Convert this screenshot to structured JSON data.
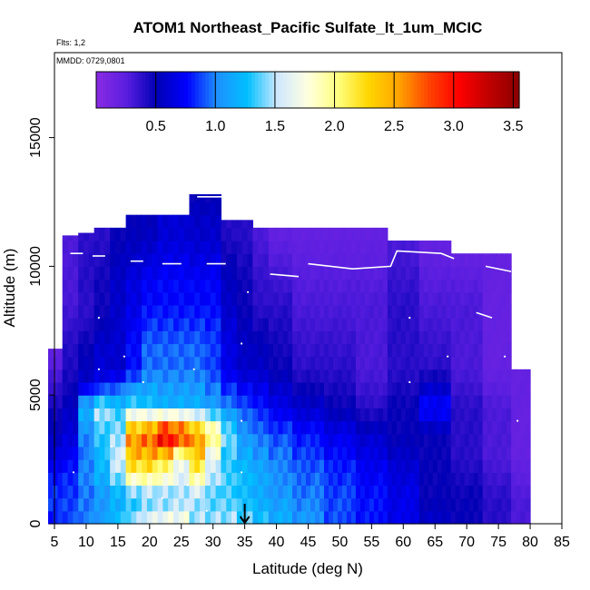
{
  "chart_data": {
    "type": "heatmap",
    "title": "ATOM1 Northeast_Pacific Sulfate_lt_1um_MCIC",
    "flights_label": "Flts: 1,2",
    "dates_label": "MMDD: 0729,0801",
    "xlabel": "Latitude (deg N)",
    "ylabel": "Altitude (m)",
    "xlim": [
      5,
      85
    ],
    "ylim": [
      0,
      18300
    ],
    "x_ticks": [
      5,
      10,
      15,
      20,
      25,
      30,
      35,
      40,
      45,
      50,
      55,
      60,
      65,
      70,
      75,
      80,
      85
    ],
    "x_tick_labels": [
      "5",
      "10",
      "15",
      "20",
      "25",
      "30",
      "35",
      "40",
      "45",
      "50",
      "55",
      "60",
      "65",
      "70",
      "75",
      "80",
      "85"
    ],
    "y_ticks": [
      0,
      5000,
      10000,
      15000
    ],
    "y_tick_labels": [
      "0",
      "5000",
      "10000",
      "15000"
    ],
    "colorbar": {
      "range": [
        0,
        3.55
      ],
      "ticks": [
        0.5,
        1.0,
        1.5,
        2.0,
        2.5,
        3.0,
        3.5
      ],
      "tick_labels": [
        "0.5",
        "1.0",
        "1.5",
        "2.0",
        "2.5",
        "3.0",
        "3.5"
      ],
      "colors": [
        "#8a2be2",
        "#5a1ee0",
        "#0000b4",
        "#0000ff",
        "#1e90ff",
        "#00bfff",
        "#cfe8ff",
        "#ffffe0",
        "#ffff80",
        "#ffd700",
        "#ffa500",
        "#ff4500",
        "#ff0000",
        "#c00000",
        "#8b0000"
      ]
    },
    "marker": {
      "label": "arrow",
      "x": 35
    },
    "columns": [
      {
        "lat": 5,
        "top": 6800,
        "profile": [
          [
            0,
            0.8
          ],
          [
            1000,
            0.9
          ],
          [
            3000,
            0.6
          ],
          [
            5000,
            0.4
          ],
          [
            6800,
            0.2
          ]
        ]
      },
      {
        "lat": 7.5,
        "top": 11200,
        "profile": [
          [
            0,
            0.9
          ],
          [
            1000,
            0.9
          ],
          [
            3000,
            0.7
          ],
          [
            5000,
            0.5
          ],
          [
            7000,
            0.4
          ],
          [
            9000,
            0.3
          ],
          [
            11200,
            0.3
          ]
        ]
      },
      {
        "lat": 10,
        "top": 11300,
        "profile": [
          [
            0,
            1.0
          ],
          [
            1000,
            1.0
          ],
          [
            3000,
            1.0
          ],
          [
            4500,
            1.2
          ],
          [
            5500,
            0.6
          ],
          [
            8000,
            0.4
          ],
          [
            11300,
            0.4
          ]
        ]
      },
      {
        "lat": 12.5,
        "top": 11500,
        "profile": [
          [
            0,
            1.1
          ],
          [
            1000,
            1.1
          ],
          [
            3000,
            1.3
          ],
          [
            4500,
            1.5
          ],
          [
            5500,
            0.7
          ],
          [
            8000,
            0.5
          ],
          [
            11500,
            0.4
          ]
        ]
      },
      {
        "lat": 15,
        "top": 11500,
        "profile": [
          [
            0,
            1.3
          ],
          [
            1000,
            1.2
          ],
          [
            2500,
            1.6
          ],
          [
            3500,
            1.5
          ],
          [
            4500,
            1.3
          ],
          [
            6000,
            0.6
          ],
          [
            8500,
            0.6
          ],
          [
            11500,
            0.5
          ]
        ]
      },
      {
        "lat": 17.5,
        "top": 12000,
        "profile": [
          [
            0,
            1.5
          ],
          [
            1000,
            1.3
          ],
          [
            2500,
            2.4
          ],
          [
            3500,
            2.7
          ],
          [
            4500,
            1.4
          ],
          [
            6000,
            0.8
          ],
          [
            8500,
            0.7
          ],
          [
            12000,
            0.5
          ]
        ]
      },
      {
        "lat": 20,
        "top": 12000,
        "profile": [
          [
            0,
            1.7
          ],
          [
            1000,
            1.4
          ],
          [
            2500,
            2.4
          ],
          [
            3500,
            2.9
          ],
          [
            4500,
            1.3
          ],
          [
            6000,
            1.0
          ],
          [
            8500,
            0.8
          ],
          [
            12000,
            0.5
          ]
        ]
      },
      {
        "lat": 22.5,
        "top": 12000,
        "profile": [
          [
            0,
            1.8
          ],
          [
            1000,
            1.4
          ],
          [
            2500,
            2.2
          ],
          [
            3500,
            3.4
          ],
          [
            4500,
            1.2
          ],
          [
            6000,
            1.0
          ],
          [
            8500,
            0.8
          ],
          [
            12000,
            0.6
          ]
        ]
      },
      {
        "lat": 25,
        "top": 12000,
        "profile": [
          [
            0,
            1.8
          ],
          [
            1000,
            1.5
          ],
          [
            2500,
            1.7
          ],
          [
            3500,
            3.2
          ],
          [
            4500,
            1.2
          ],
          [
            6000,
            1.0
          ],
          [
            8500,
            0.8
          ],
          [
            12000,
            0.6
          ]
        ]
      },
      {
        "lat": 27.5,
        "top": 12800,
        "profile": [
          [
            0,
            1.5
          ],
          [
            1000,
            1.5
          ],
          [
            2500,
            2.3
          ],
          [
            3500,
            2.7
          ],
          [
            4500,
            1.2
          ],
          [
            6000,
            1.0
          ],
          [
            8500,
            0.8
          ],
          [
            12800,
            0.5
          ]
        ]
      },
      {
        "lat": 30,
        "top": 12800,
        "profile": [
          [
            0,
            1.5
          ],
          [
            1000,
            1.4
          ],
          [
            2500,
            1.6
          ],
          [
            3500,
            2.2
          ],
          [
            4500,
            1.1
          ],
          [
            6000,
            0.9
          ],
          [
            8500,
            0.8
          ],
          [
            12800,
            0.5
          ]
        ]
      },
      {
        "lat": 32.5,
        "top": 11800,
        "profile": [
          [
            0,
            1.5
          ],
          [
            1000,
            1.4
          ],
          [
            2500,
            1.3
          ],
          [
            3500,
            1.5
          ],
          [
            4500,
            1.0
          ],
          [
            6000,
            0.7
          ],
          [
            8500,
            0.6
          ],
          [
            11800,
            0.4
          ]
        ]
      },
      {
        "lat": 35,
        "top": 11800,
        "profile": [
          [
            0,
            1.4
          ],
          [
            1000,
            1.3
          ],
          [
            2500,
            1.2
          ],
          [
            3500,
            1.1
          ],
          [
            4500,
            0.9
          ],
          [
            6000,
            0.6
          ],
          [
            8500,
            0.5
          ],
          [
            11800,
            0.4
          ]
        ]
      },
      {
        "lat": 37.5,
        "top": 11500,
        "profile": [
          [
            0,
            1.3
          ],
          [
            1000,
            1.2
          ],
          [
            2500,
            1.1
          ],
          [
            3500,
            1.0
          ],
          [
            4500,
            0.8
          ],
          [
            6000,
            0.6
          ],
          [
            8500,
            0.4
          ],
          [
            11500,
            0.3
          ]
        ]
      },
      {
        "lat": 40,
        "top": 11500,
        "profile": [
          [
            0,
            1.2
          ],
          [
            1000,
            1.1
          ],
          [
            2500,
            1.0
          ],
          [
            3500,
            0.9
          ],
          [
            4500,
            0.7
          ],
          [
            6000,
            0.5
          ],
          [
            8500,
            0.4
          ],
          [
            11500,
            0.2
          ]
        ]
      },
      {
        "lat": 45,
        "top": 11500,
        "profile": [
          [
            0,
            1.1
          ],
          [
            1000,
            1.0
          ],
          [
            2500,
            0.9
          ],
          [
            3500,
            0.8
          ],
          [
            4500,
            0.6
          ],
          [
            6000,
            0.4
          ],
          [
            8500,
            0.3
          ],
          [
            11500,
            0.2
          ]
        ]
      },
      {
        "lat": 50,
        "top": 11500,
        "profile": [
          [
            0,
            0.9
          ],
          [
            1000,
            0.9
          ],
          [
            2500,
            0.8
          ],
          [
            3500,
            0.7
          ],
          [
            4500,
            0.5
          ],
          [
            6000,
            0.4
          ],
          [
            8500,
            0.3
          ],
          [
            11500,
            0.2
          ]
        ]
      },
      {
        "lat": 55,
        "top": 11500,
        "profile": [
          [
            0,
            0.8
          ],
          [
            1000,
            0.8
          ],
          [
            2500,
            0.7
          ],
          [
            3500,
            0.6
          ],
          [
            4500,
            0.4
          ],
          [
            6000,
            0.3
          ],
          [
            8500,
            0.3
          ],
          [
            11500,
            0.2
          ]
        ]
      },
      {
        "lat": 60,
        "top": 11000,
        "profile": [
          [
            0,
            0.7
          ],
          [
            1000,
            0.7
          ],
          [
            2500,
            0.6
          ],
          [
            3500,
            0.5
          ],
          [
            4500,
            0.5
          ],
          [
            6000,
            0.4
          ],
          [
            8500,
            0.4
          ],
          [
            11000,
            0.3
          ]
        ]
      },
      {
        "lat": 65,
        "top": 11000,
        "profile": [
          [
            0,
            0.6
          ],
          [
            1000,
            0.5
          ],
          [
            2500,
            0.5
          ],
          [
            3500,
            0.5
          ],
          [
            4500,
            0.8
          ],
          [
            6000,
            0.4
          ],
          [
            8500,
            0.3
          ],
          [
            11000,
            0.2
          ]
        ]
      },
      {
        "lat": 70,
        "top": 10500,
        "profile": [
          [
            0,
            0.5
          ],
          [
            1000,
            0.5
          ],
          [
            2500,
            0.4
          ],
          [
            3500,
            0.4
          ],
          [
            4500,
            0.4
          ],
          [
            6000,
            0.3
          ],
          [
            8500,
            0.3
          ],
          [
            10500,
            0.2
          ]
        ]
      },
      {
        "lat": 75,
        "top": 10500,
        "profile": [
          [
            0,
            0.4
          ],
          [
            1000,
            0.4
          ],
          [
            2500,
            0.3
          ],
          [
            3500,
            0.3
          ],
          [
            4500,
            0.3
          ],
          [
            6000,
            0.2
          ],
          [
            8500,
            0.2
          ],
          [
            10500,
            0.2
          ]
        ]
      },
      {
        "lat": 79,
        "top": 6000,
        "profile": [
          [
            0,
            0.3
          ],
          [
            1000,
            0.3
          ],
          [
            2500,
            0.2
          ],
          [
            4500,
            0.2
          ],
          [
            6000,
            0.2
          ]
        ]
      }
    ]
  }
}
